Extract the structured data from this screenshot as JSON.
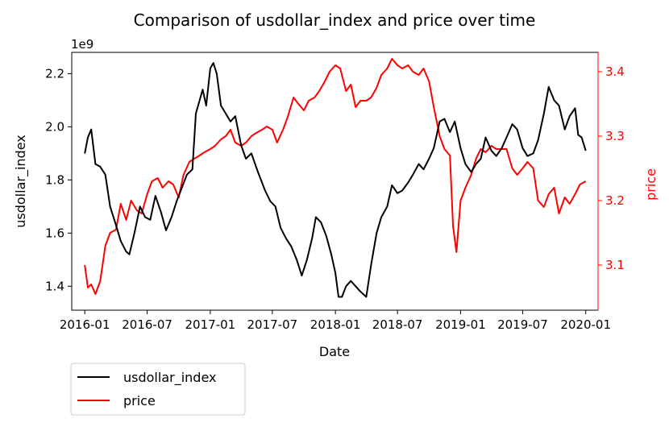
{
  "chart_data": {
    "type": "line",
    "title": "Comparison of usdollar_index and price over time",
    "xlabel": "Date",
    "ylabel_left": "usdollar_index",
    "ylabel_right": "price",
    "left_axis_offset_label": "1e9",
    "x_ticks": [
      "2016-01",
      "2016-07",
      "2017-01",
      "2017-07",
      "2018-01",
      "2018-07",
      "2019-01",
      "2019-07",
      "2020-01"
    ],
    "y_left_ticks": [
      "1.4",
      "1.6",
      "1.8",
      "2.0",
      "2.2"
    ],
    "y_right_ticks": [
      "3.1",
      "3.2",
      "3.3",
      "3.4"
    ],
    "ylim_left": [
      1.31,
      2.28
    ],
    "ylim_right": [
      3.03,
      3.43
    ],
    "xlim": [
      "2015-11-24",
      "2020-02-06"
    ],
    "legend_placement": "below-left",
    "grid": false,
    "colors": {
      "usdollar_index": "#000000",
      "price": "#ff0000"
    },
    "series": [
      {
        "name": "usdollar_index",
        "axis": "left",
        "color": "#000000",
        "points": [
          [
            "2016-01-01",
            1.9
          ],
          [
            "2016-01-10",
            1.96
          ],
          [
            "2016-01-20",
            1.99
          ],
          [
            "2016-02-01",
            1.86
          ],
          [
            "2016-02-15",
            1.85
          ],
          [
            "2016-03-01",
            1.82
          ],
          [
            "2016-03-15",
            1.7
          ],
          [
            "2016-04-01",
            1.63
          ],
          [
            "2016-04-15",
            1.57
          ],
          [
            "2016-05-01",
            1.53
          ],
          [
            "2016-05-10",
            1.52
          ],
          [
            "2016-05-25",
            1.6
          ],
          [
            "2016-06-10",
            1.7
          ],
          [
            "2016-06-25",
            1.66
          ],
          [
            "2016-07-10",
            1.65
          ],
          [
            "2016-07-25",
            1.74
          ],
          [
            "2016-08-10",
            1.68
          ],
          [
            "2016-08-25",
            1.61
          ],
          [
            "2016-09-10",
            1.66
          ],
          [
            "2016-09-25",
            1.72
          ],
          [
            "2016-10-10",
            1.77
          ],
          [
            "2016-10-25",
            1.82
          ],
          [
            "2016-11-10",
            1.84
          ],
          [
            "2016-11-20",
            2.05
          ],
          [
            "2016-12-01",
            2.1
          ],
          [
            "2016-12-10",
            2.14
          ],
          [
            "2016-12-20",
            2.08
          ],
          [
            "2017-01-01",
            2.22
          ],
          [
            "2017-01-10",
            2.24
          ],
          [
            "2017-01-20",
            2.2
          ],
          [
            "2017-02-01",
            2.08
          ],
          [
            "2017-02-15",
            2.05
          ],
          [
            "2017-03-01",
            2.02
          ],
          [
            "2017-03-15",
            2.04
          ],
          [
            "2017-04-01",
            1.93
          ],
          [
            "2017-04-15",
            1.88
          ],
          [
            "2017-05-01",
            1.9
          ],
          [
            "2017-05-20",
            1.83
          ],
          [
            "2017-06-10",
            1.76
          ],
          [
            "2017-06-25",
            1.72
          ],
          [
            "2017-07-10",
            1.7
          ],
          [
            "2017-07-25",
            1.62
          ],
          [
            "2017-08-10",
            1.58
          ],
          [
            "2017-08-25",
            1.55
          ],
          [
            "2017-09-10",
            1.5
          ],
          [
            "2017-09-25",
            1.44
          ],
          [
            "2017-10-10",
            1.5
          ],
          [
            "2017-10-25",
            1.58
          ],
          [
            "2017-11-05",
            1.66
          ],
          [
            "2017-11-20",
            1.64
          ],
          [
            "2017-12-05",
            1.59
          ],
          [
            "2017-12-20",
            1.52
          ],
          [
            "2018-01-01",
            1.45
          ],
          [
            "2018-01-10",
            1.36
          ],
          [
            "2018-01-20",
            1.36
          ],
          [
            "2018-02-01",
            1.4
          ],
          [
            "2018-02-15",
            1.42
          ],
          [
            "2018-03-01",
            1.4
          ],
          [
            "2018-03-15",
            1.38
          ],
          [
            "2018-04-01",
            1.36
          ],
          [
            "2018-04-15",
            1.48
          ],
          [
            "2018-05-01",
            1.6
          ],
          [
            "2018-05-15",
            1.66
          ],
          [
            "2018-06-01",
            1.7
          ],
          [
            "2018-06-15",
            1.78
          ],
          [
            "2018-07-01",
            1.75
          ],
          [
            "2018-07-15",
            1.76
          ],
          [
            "2018-08-01",
            1.79
          ],
          [
            "2018-08-15",
            1.82
          ],
          [
            "2018-09-01",
            1.86
          ],
          [
            "2018-09-15",
            1.84
          ],
          [
            "2018-10-01",
            1.88
          ],
          [
            "2018-10-15",
            1.92
          ],
          [
            "2018-11-01",
            2.02
          ],
          [
            "2018-11-15",
            2.03
          ],
          [
            "2018-12-01",
            1.98
          ],
          [
            "2018-12-15",
            2.02
          ],
          [
            "2019-01-01",
            1.92
          ],
          [
            "2019-01-15",
            1.86
          ],
          [
            "2019-02-01",
            1.83
          ],
          [
            "2019-02-15",
            1.86
          ],
          [
            "2019-03-01",
            1.88
          ],
          [
            "2019-03-15",
            1.96
          ],
          [
            "2019-04-01",
            1.91
          ],
          [
            "2019-04-15",
            1.89
          ],
          [
            "2019-05-01",
            1.92
          ],
          [
            "2019-05-15",
            1.96
          ],
          [
            "2019-06-01",
            2.01
          ],
          [
            "2019-06-15",
            1.99
          ],
          [
            "2019-07-01",
            1.92
          ],
          [
            "2019-07-15",
            1.89
          ],
          [
            "2019-08-01",
            1.9
          ],
          [
            "2019-08-15",
            1.95
          ],
          [
            "2019-09-01",
            2.05
          ],
          [
            "2019-09-15",
            2.15
          ],
          [
            "2019-10-01",
            2.1
          ],
          [
            "2019-10-15",
            2.08
          ],
          [
            "2019-11-01",
            1.99
          ],
          [
            "2019-11-15",
            2.04
          ],
          [
            "2019-12-01",
            2.07
          ],
          [
            "2019-12-10",
            1.97
          ],
          [
            "2019-12-20",
            1.96
          ],
          [
            "2020-01-01",
            1.91
          ]
        ]
      },
      {
        "name": "price",
        "axis": "right",
        "color": "#ff0000",
        "points": [
          [
            "2016-01-01",
            3.1
          ],
          [
            "2016-01-10",
            3.065
          ],
          [
            "2016-01-20",
            3.07
          ],
          [
            "2016-02-01",
            3.055
          ],
          [
            "2016-02-15",
            3.075
          ],
          [
            "2016-03-01",
            3.13
          ],
          [
            "2016-03-15",
            3.15
          ],
          [
            "2016-04-01",
            3.155
          ],
          [
            "2016-04-15",
            3.195
          ],
          [
            "2016-05-01",
            3.17
          ],
          [
            "2016-05-15",
            3.2
          ],
          [
            "2016-06-01",
            3.185
          ],
          [
            "2016-06-15",
            3.18
          ],
          [
            "2016-07-01",
            3.21
          ],
          [
            "2016-07-15",
            3.23
          ],
          [
            "2016-08-01",
            3.235
          ],
          [
            "2016-08-15",
            3.22
          ],
          [
            "2016-09-01",
            3.23
          ],
          [
            "2016-09-15",
            3.225
          ],
          [
            "2016-10-01",
            3.205
          ],
          [
            "2016-10-15",
            3.24
          ],
          [
            "2016-11-01",
            3.26
          ],
          [
            "2016-11-15",
            3.265
          ],
          [
            "2016-12-01",
            3.27
          ],
          [
            "2016-12-15",
            3.275
          ],
          [
            "2017-01-01",
            3.28
          ],
          [
            "2017-01-15",
            3.285
          ],
          [
            "2017-02-01",
            3.295
          ],
          [
            "2017-02-15",
            3.3
          ],
          [
            "2017-03-01",
            3.31
          ],
          [
            "2017-03-15",
            3.29
          ],
          [
            "2017-04-01",
            3.285
          ],
          [
            "2017-04-15",
            3.29
          ],
          [
            "2017-05-01",
            3.3
          ],
          [
            "2017-05-15",
            3.305
          ],
          [
            "2017-06-01",
            3.31
          ],
          [
            "2017-06-15",
            3.315
          ],
          [
            "2017-07-01",
            3.31
          ],
          [
            "2017-07-15",
            3.29
          ],
          [
            "2017-08-01",
            3.31
          ],
          [
            "2017-08-15",
            3.33
          ],
          [
            "2017-09-01",
            3.36
          ],
          [
            "2017-09-15",
            3.35
          ],
          [
            "2017-10-01",
            3.34
          ],
          [
            "2017-10-15",
            3.355
          ],
          [
            "2017-11-01",
            3.36
          ],
          [
            "2017-11-15",
            3.37
          ],
          [
            "2017-12-01",
            3.385
          ],
          [
            "2017-12-15",
            3.4
          ],
          [
            "2018-01-01",
            3.41
          ],
          [
            "2018-01-15",
            3.405
          ],
          [
            "2018-02-01",
            3.37
          ],
          [
            "2018-02-15",
            3.38
          ],
          [
            "2018-03-01",
            3.345
          ],
          [
            "2018-03-15",
            3.355
          ],
          [
            "2018-04-01",
            3.355
          ],
          [
            "2018-04-15",
            3.36
          ],
          [
            "2018-05-01",
            3.375
          ],
          [
            "2018-05-15",
            3.395
          ],
          [
            "2018-06-01",
            3.405
          ],
          [
            "2018-06-15",
            3.42
          ],
          [
            "2018-07-01",
            3.41
          ],
          [
            "2018-07-15",
            3.405
          ],
          [
            "2018-08-01",
            3.41
          ],
          [
            "2018-08-15",
            3.4
          ],
          [
            "2018-09-01",
            3.395
          ],
          [
            "2018-09-15",
            3.405
          ],
          [
            "2018-10-01",
            3.385
          ],
          [
            "2018-10-15",
            3.345
          ],
          [
            "2018-11-01",
            3.3
          ],
          [
            "2018-11-15",
            3.28
          ],
          [
            "2018-12-01",
            3.27
          ],
          [
            "2018-12-10",
            3.16
          ],
          [
            "2018-12-20",
            3.12
          ],
          [
            "2019-01-01",
            3.2
          ],
          [
            "2019-01-15",
            3.22
          ],
          [
            "2019-02-01",
            3.24
          ],
          [
            "2019-02-15",
            3.265
          ],
          [
            "2019-03-01",
            3.28
          ],
          [
            "2019-03-15",
            3.275
          ],
          [
            "2019-04-01",
            3.285
          ],
          [
            "2019-04-15",
            3.28
          ],
          [
            "2019-05-01",
            3.28
          ],
          [
            "2019-05-15",
            3.28
          ],
          [
            "2019-06-01",
            3.25
          ],
          [
            "2019-06-15",
            3.24
          ],
          [
            "2019-07-01",
            3.25
          ],
          [
            "2019-07-15",
            3.26
          ],
          [
            "2019-08-01",
            3.25
          ],
          [
            "2019-08-15",
            3.2
          ],
          [
            "2019-09-01",
            3.19
          ],
          [
            "2019-09-15",
            3.21
          ],
          [
            "2019-10-01",
            3.22
          ],
          [
            "2019-10-15",
            3.18
          ],
          [
            "2019-11-01",
            3.205
          ],
          [
            "2019-11-15",
            3.195
          ],
          [
            "2019-12-01",
            3.21
          ],
          [
            "2019-12-15",
            3.225
          ],
          [
            "2020-01-01",
            3.23
          ]
        ]
      }
    ]
  }
}
